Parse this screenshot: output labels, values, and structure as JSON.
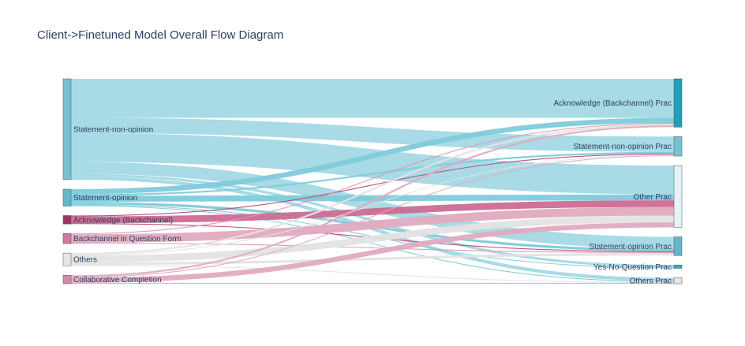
{
  "title": "Client->Finetuned Model Overall Flow Diagram",
  "chart_data": {
    "type": "sankey",
    "sources": [
      {
        "id": "s_sno",
        "label": "Statement-non-opinion",
        "color": "#75c2d4"
      },
      {
        "id": "s_so",
        "label": "Statement-opinion",
        "color": "#5fb8cc"
      },
      {
        "id": "s_ack",
        "label": "Acknowledge (Backchannel)",
        "color": "#a3315f"
      },
      {
        "id": "s_bq",
        "label": "Backchannel in Question Form",
        "color": "#cf7a9c"
      },
      {
        "id": "s_oth",
        "label": "Others",
        "color": "#e6e6e6"
      },
      {
        "id": "s_cc",
        "label": "Collaborative Completion",
        "color": "#d68ba9"
      }
    ],
    "targets": [
      {
        "id": "t_ack",
        "label": "Acknowledge (Backchannel) Prac",
        "color": "#20a0b8"
      },
      {
        "id": "t_sno",
        "label": "Statement-non-opinion Prac",
        "color": "#75c2d4"
      },
      {
        "id": "t_oth",
        "label": "Other Prac",
        "color": "#e3f3f7"
      },
      {
        "id": "t_so",
        "label": "Statement-opinion Prac",
        "color": "#5fb8cc"
      },
      {
        "id": "t_yn",
        "label": "Yes-No-Question Prac",
        "color": "#3aa8bf"
      },
      {
        "id": "t_others",
        "label": "Others Prac",
        "color": "#e6e6e6"
      }
    ],
    "links": [
      {
        "source": "s_sno",
        "target": "t_ack",
        "value": 46,
        "color": "#a3d9e4"
      },
      {
        "source": "s_sno",
        "target": "t_sno",
        "value": 18,
        "color": "#a3d9e4"
      },
      {
        "source": "s_sno",
        "target": "t_oth",
        "value": 34,
        "color": "#a3d9e4"
      },
      {
        "source": "s_sno",
        "target": "t_so",
        "value": 14,
        "color": "#a3d9e4"
      },
      {
        "source": "s_sno",
        "target": "t_yn",
        "value": 3,
        "color": "#a3d9e4"
      },
      {
        "source": "s_sno",
        "target": "t_others",
        "value": 4,
        "color": "#a3d9e4"
      },
      {
        "source": "s_so",
        "target": "t_ack",
        "value": 6,
        "color": "#80cbdb"
      },
      {
        "source": "s_so",
        "target": "t_sno",
        "value": 2,
        "color": "#80cbdb"
      },
      {
        "source": "s_so",
        "target": "t_oth",
        "value": 7,
        "color": "#80cbdb"
      },
      {
        "source": "s_so",
        "target": "t_so",
        "value": 3,
        "color": "#80cbdb"
      },
      {
        "source": "s_so",
        "target": "t_yn",
        "value": 1,
        "color": "#80cbdb"
      },
      {
        "source": "s_so",
        "target": "t_others",
        "value": 1,
        "color": "#80cbdb"
      },
      {
        "source": "s_ack",
        "target": "t_sno",
        "value": 1,
        "color": "#b54a76"
      },
      {
        "source": "s_ack",
        "target": "t_oth",
        "value": 8,
        "color": "#cc6b93"
      },
      {
        "source": "s_ack",
        "target": "t_so",
        "value": 1,
        "color": "#b54a76"
      },
      {
        "source": "s_bq",
        "target": "t_ack",
        "value": 1,
        "color": "#d997b1"
      },
      {
        "source": "s_bq",
        "target": "t_oth",
        "value": 10,
        "color": "#e0abbf"
      },
      {
        "source": "s_bq",
        "target": "t_so",
        "value": 1,
        "color": "#d997b1"
      },
      {
        "source": "s_oth",
        "target": "t_ack",
        "value": 2,
        "color": "#e3e3e3"
      },
      {
        "source": "s_oth",
        "target": "t_sno",
        "value": 1,
        "color": "#e3e3e3"
      },
      {
        "source": "s_oth",
        "target": "t_oth",
        "value": 8,
        "color": "#e3e3e3"
      },
      {
        "source": "s_oth",
        "target": "t_so",
        "value": 3,
        "color": "#e3e3e3"
      },
      {
        "source": "s_oth",
        "target": "t_others",
        "value": 1,
        "color": "#e3e3e3"
      },
      {
        "source": "s_cc",
        "target": "t_ack",
        "value": 2,
        "color": "#e0abbf"
      },
      {
        "source": "s_cc",
        "target": "t_sno",
        "value": 1,
        "color": "#e0abbf"
      },
      {
        "source": "s_cc",
        "target": "t_oth",
        "value": 6,
        "color": "#e0abbf"
      },
      {
        "source": "s_cc",
        "target": "t_others",
        "value": 1,
        "color": "#e0abbf"
      }
    ]
  }
}
